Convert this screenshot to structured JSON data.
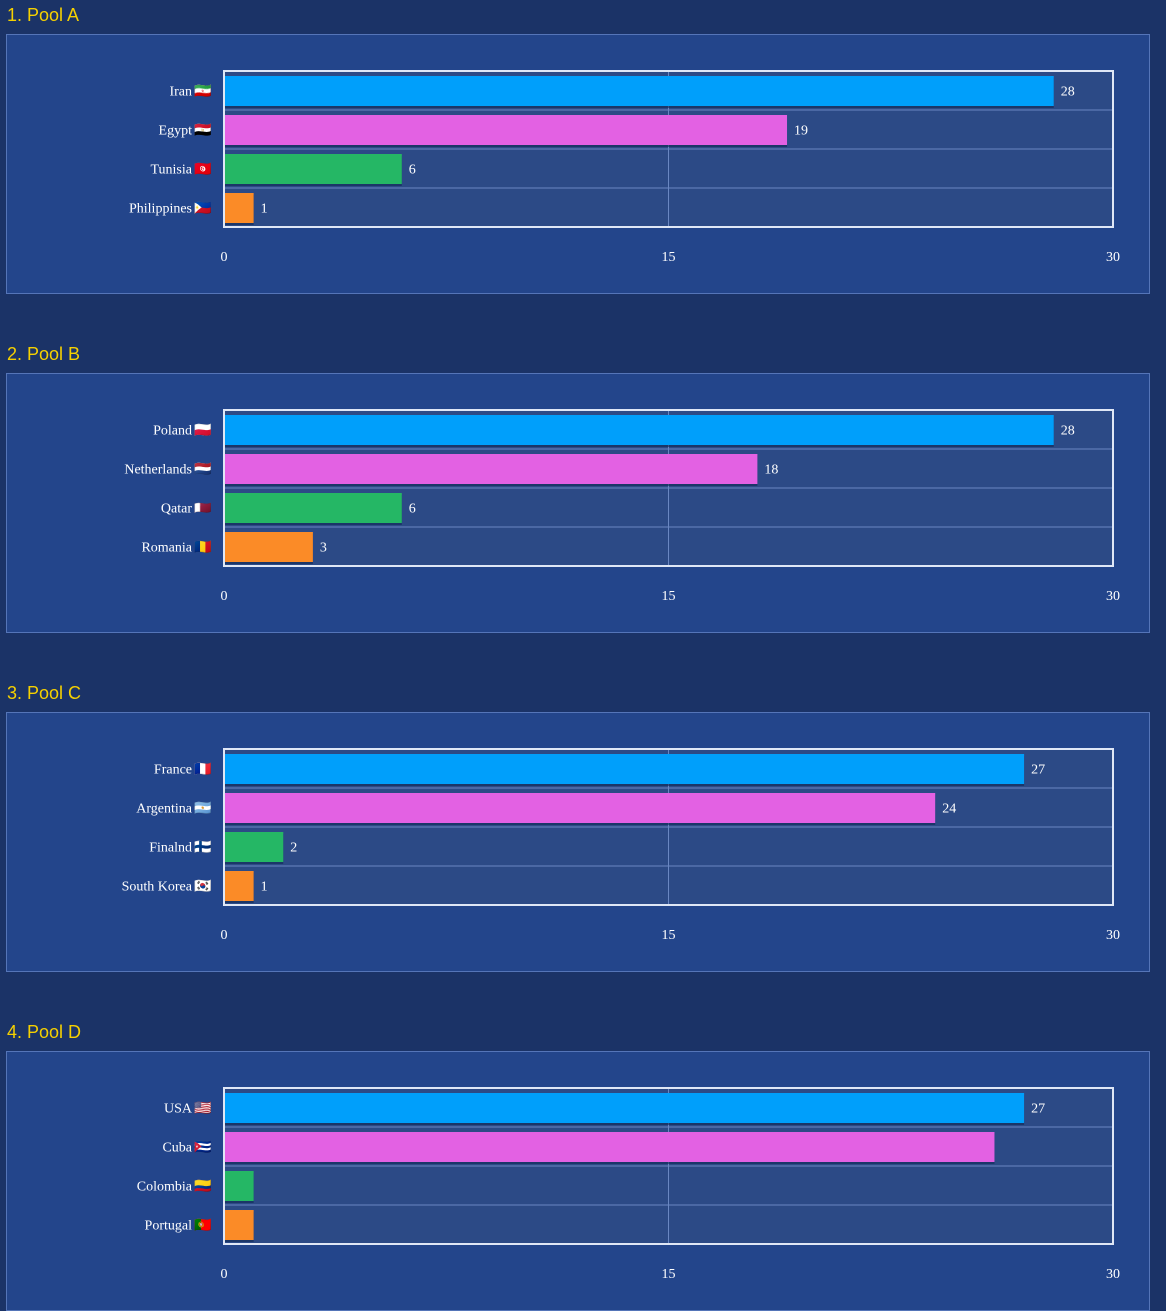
{
  "chart_data": [
    {
      "type": "bar",
      "orientation": "horizontal",
      "title": "1. Pool A",
      "categories": [
        "Iran",
        "Egypt",
        "Tunisia",
        "Philippines"
      ],
      "flags": [
        "🇮🇷",
        "🇪🇬",
        "🇹🇳",
        "🇵🇭"
      ],
      "values": [
        28,
        19,
        6,
        1
      ],
      "value_labels": [
        "28",
        "19",
        "6",
        "1"
      ],
      "xlim": [
        0,
        30
      ],
      "xticks": [
        0,
        15,
        30
      ],
      "colors": [
        "#009ffb",
        "#e361e3",
        "#25b765",
        "#fb8b27"
      ],
      "grid": true
    },
    {
      "type": "bar",
      "orientation": "horizontal",
      "title": "2. Pool B",
      "categories": [
        "Poland",
        "Netherlands",
        "Qatar",
        "Romania"
      ],
      "flags": [
        "🇵🇱",
        "🇳🇱",
        "🇶🇦",
        "🇷🇴"
      ],
      "values": [
        28,
        18,
        6,
        3
      ],
      "value_labels": [
        "28",
        "18",
        "6",
        "3"
      ],
      "xlim": [
        0,
        30
      ],
      "xticks": [
        0,
        15,
        30
      ],
      "colors": [
        "#009ffb",
        "#e361e3",
        "#25b765",
        "#fb8b27"
      ],
      "grid": true
    },
    {
      "type": "bar",
      "orientation": "horizontal",
      "title": "3. Pool C",
      "categories": [
        "France",
        "Argentina",
        "Finalnd",
        "South Korea"
      ],
      "flags": [
        "🇫🇷",
        "🇦🇷",
        "🇫🇮",
        "🇰🇷"
      ],
      "values": [
        27,
        24,
        2,
        1
      ],
      "value_labels": [
        "27",
        "24",
        "2",
        "1"
      ],
      "xlim": [
        0,
        30
      ],
      "xticks": [
        0,
        15,
        30
      ],
      "colors": [
        "#009ffb",
        "#e361e3",
        "#25b765",
        "#fb8b27"
      ],
      "grid": true
    },
    {
      "type": "bar",
      "orientation": "horizontal",
      "title": "4. Pool D",
      "categories": [
        "USA",
        "Cuba",
        "Colombia",
        "Portugal"
      ],
      "flags": [
        "🇺🇸",
        "🇨🇺",
        "🇨🇴",
        "🇵🇹"
      ],
      "values": [
        27,
        26,
        1,
        1
      ],
      "value_labels": [
        "27",
        "",
        "",
        ""
      ],
      "xlim": [
        0,
        30
      ],
      "xticks": [
        0,
        15,
        30
      ],
      "colors": [
        "#009ffb",
        "#e361e3",
        "#25b765",
        "#fb8b27"
      ],
      "grid": true
    }
  ]
}
